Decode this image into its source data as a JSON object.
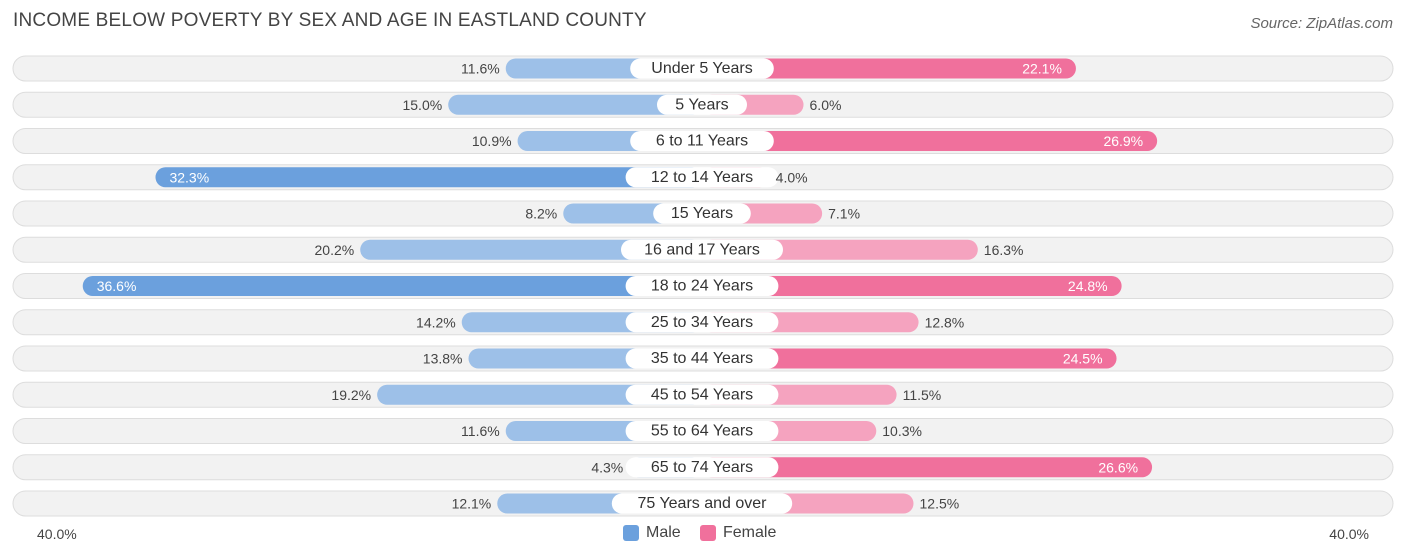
{
  "title": "INCOME BELOW POVERTY BY SEX AND AGE IN EASTLAND COUNTY",
  "source": "Source: ZipAtlas.com",
  "colors": {
    "male_strong": "#6ba0dd",
    "male_light": "#9dc0e8",
    "female_strong": "#f0709c",
    "female_light": "#f5a3bf",
    "row_bg": "#f2f2f2",
    "row_border": "#dddddd"
  },
  "chart_data": {
    "type": "bar",
    "title": "INCOME BELOW POVERTY BY SEX AND AGE IN EASTLAND COUNTY",
    "categories": [
      "Under 5 Years",
      "5 Years",
      "6 to 11 Years",
      "12 to 14 Years",
      "15 Years",
      "16 and 17 Years",
      "18 to 24 Years",
      "25 to 34 Years",
      "35 to 44 Years",
      "45 to 54 Years",
      "55 to 64 Years",
      "65 to 74 Years",
      "75 Years and over"
    ],
    "series": [
      {
        "name": "Male",
        "values": [
          11.6,
          15.0,
          10.9,
          32.3,
          8.2,
          20.2,
          36.6,
          14.2,
          13.8,
          19.2,
          11.6,
          4.3,
          12.1
        ],
        "labels": [
          "11.6%",
          "15.0%",
          "10.9%",
          "32.3%",
          "8.2%",
          "20.2%",
          "36.6%",
          "14.2%",
          "13.8%",
          "19.2%",
          "11.6%",
          "4.3%",
          "12.1%"
        ]
      },
      {
        "name": "Female",
        "values": [
          22.1,
          6.0,
          26.9,
          4.0,
          7.1,
          16.3,
          24.8,
          12.8,
          24.5,
          11.5,
          10.3,
          26.6,
          12.5
        ],
        "labels": [
          "22.1%",
          "6.0%",
          "26.9%",
          "4.0%",
          "7.1%",
          "16.3%",
          "24.8%",
          "12.8%",
          "24.5%",
          "11.5%",
          "10.3%",
          "26.6%",
          "12.5%"
        ]
      }
    ],
    "xlim": [
      -40,
      40
    ],
    "axis_left_label": "40.0%",
    "axis_right_label": "40.0%",
    "legend": [
      "Male",
      "Female"
    ]
  }
}
